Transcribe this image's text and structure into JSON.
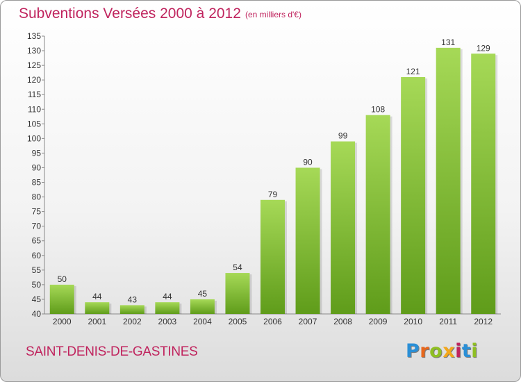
{
  "header": {
    "title": "Subventions Versées 2000 à 2012",
    "unit": "(en milliers d'€)"
  },
  "footer": {
    "town": "SAINT-DENIS-DE-GASTINES",
    "logo_letters": [
      "P",
      "r",
      "o",
      "x",
      "i",
      "t",
      "i"
    ],
    "logo_colors": [
      "#2a8fd6",
      "#e8671c",
      "#8fbf22",
      "#f3a71b",
      "#c0245e",
      "#2a8fd6",
      "#8fbf22"
    ]
  },
  "colors": {
    "bar_top": "#a6d957",
    "bar_bottom": "#5f9c1a",
    "text": "#c0245e",
    "axis_text": "#333333"
  },
  "chart_data": {
    "type": "bar",
    "categories": [
      "2000",
      "2001",
      "2002",
      "2003",
      "2004",
      "2005",
      "2006",
      "2007",
      "2008",
      "2009",
      "2010",
      "2011",
      "2012"
    ],
    "values": [
      50,
      44,
      43,
      44,
      45,
      54,
      79,
      90,
      99,
      108,
      121,
      131,
      129
    ],
    "ylim": [
      40,
      135
    ],
    "ytick_step": 5,
    "grid": false,
    "data_labels": true
  }
}
